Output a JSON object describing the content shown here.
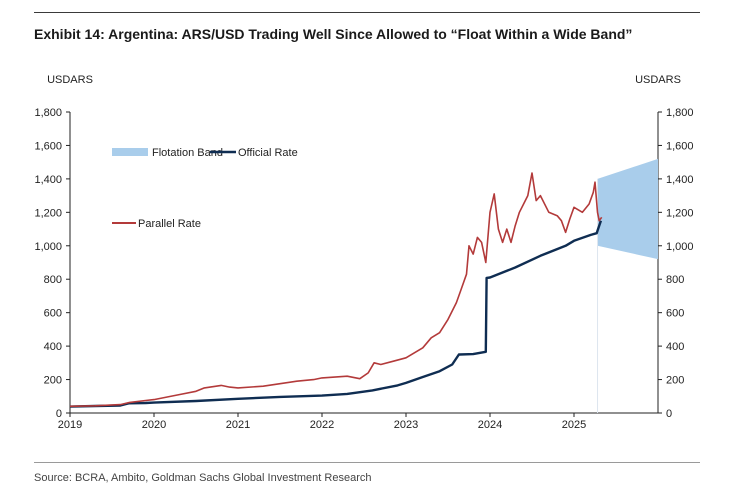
{
  "title": "Exhibit 14: Argentina: ARS/USD Trading Well Since Allowed to “Float Within a Wide Band”",
  "source": "Source: BCRA, Ambito, Goldman Sachs Global Investment Research",
  "colors": {
    "band": "#a9cdeb",
    "official": "#0f2d52",
    "parallel": "#b33a3a"
  },
  "chart_data": {
    "type": "line",
    "ylabel_left": "USDARS",
    "ylabel_right": "USDARS",
    "xlim": [
      2019.0,
      2026.0
    ],
    "ylim": [
      0,
      1800
    ],
    "y_ticks": [
      "0",
      "200",
      "400",
      "600",
      "800",
      "1,000",
      "1,200",
      "1,400",
      "1,600",
      "1,800"
    ],
    "x_ticks": [
      "2019",
      "2020",
      "2021",
      "2022",
      "2023",
      "2024",
      "2025"
    ],
    "grid": false,
    "legend": [
      {
        "name": "Flotation Band",
        "kind": "band"
      },
      {
        "name": "Official Rate",
        "kind": "official"
      },
      {
        "name": "Parallel Rate",
        "kind": "parallel"
      }
    ],
    "series": [
      {
        "name": "Flotation Band",
        "kind": "band",
        "x": [
          2025.28,
          2026.0
        ],
        "upper": [
          1400,
          1520
        ],
        "lower": [
          1000,
          920
        ]
      },
      {
        "name": "Official Rate",
        "kind": "official",
        "x": [
          2019.0,
          2019.3,
          2019.6,
          2019.7,
          2019.9,
          2020.0,
          2020.5,
          2021.0,
          2021.5,
          2022.0,
          2022.3,
          2022.6,
          2022.9,
          2023.0,
          2023.2,
          2023.4,
          2023.55,
          2023.63,
          2023.64,
          2023.8,
          2023.95,
          2023.96,
          2024.0,
          2024.3,
          2024.6,
          2024.9,
          2025.0,
          2025.2,
          2025.27,
          2025.28,
          2025.3,
          2025.32
        ],
        "y": [
          38,
          42,
          45,
          58,
          60,
          62,
          72,
          85,
          96,
          104,
          114,
          135,
          165,
          180,
          215,
          250,
          290,
          350,
          350,
          352,
          366,
          808,
          810,
          870,
          940,
          1000,
          1030,
          1065,
          1075,
          1090,
          1120,
          1150
        ]
      },
      {
        "name": "Parallel Rate",
        "kind": "parallel",
        "x": [
          2019.0,
          2019.3,
          2019.6,
          2019.7,
          2019.9,
          2020.0,
          2020.3,
          2020.5,
          2020.6,
          2020.8,
          2020.9,
          2021.0,
          2021.3,
          2021.5,
          2021.7,
          2021.9,
          2022.0,
          2022.3,
          2022.45,
          2022.55,
          2022.62,
          2022.7,
          2022.85,
          2023.0,
          2023.1,
          2023.2,
          2023.3,
          2023.4,
          2023.5,
          2023.6,
          2023.65,
          2023.72,
          2023.75,
          2023.8,
          2023.85,
          2023.9,
          2023.95,
          2024.0,
          2024.05,
          2024.1,
          2024.15,
          2024.2,
          2024.25,
          2024.3,
          2024.35,
          2024.4,
          2024.45,
          2024.5,
          2024.55,
          2024.6,
          2024.7,
          2024.8,
          2024.85,
          2024.9,
          2024.95,
          2025.0,
          2025.1,
          2025.18,
          2025.23,
          2025.25,
          2025.28,
          2025.3,
          2025.33
        ],
        "y": [
          40,
          43,
          50,
          62,
          75,
          80,
          110,
          130,
          150,
          165,
          155,
          150,
          160,
          175,
          190,
          200,
          210,
          220,
          205,
          240,
          300,
          290,
          310,
          330,
          360,
          390,
          450,
          480,
          560,
          660,
          730,
          830,
          1000,
          950,
          1050,
          1020,
          900,
          1200,
          1310,
          1100,
          1020,
          1100,
          1020,
          1120,
          1200,
          1250,
          1300,
          1435,
          1270,
          1300,
          1200,
          1180,
          1150,
          1080,
          1160,
          1230,
          1200,
          1250,
          1320,
          1380,
          1200,
          1150,
          1170
        ]
      }
    ]
  }
}
